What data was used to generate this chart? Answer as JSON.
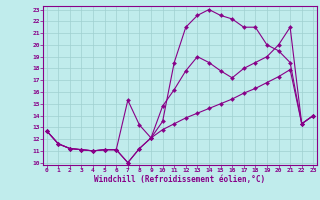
{
  "background_color": "#c0ecec",
  "grid_color": "#a0d0d0",
  "line_color": "#880088",
  "xlabel": "Windchill (Refroidissement éolien,°C)",
  "xlim": [
    0,
    23
  ],
  "ylim": [
    10,
    23
  ],
  "xticks": [
    0,
    1,
    2,
    3,
    4,
    5,
    6,
    7,
    8,
    9,
    10,
    11,
    12,
    13,
    14,
    15,
    16,
    17,
    18,
    19,
    20,
    21,
    22,
    23
  ],
  "yticks": [
    10,
    11,
    12,
    13,
    14,
    15,
    16,
    17,
    18,
    19,
    20,
    21,
    22,
    23
  ],
  "series": [
    {
      "x": [
        0,
        1,
        2,
        3,
        4,
        5,
        6,
        7,
        8,
        9,
        10,
        11,
        12,
        13,
        14,
        15,
        16,
        17,
        18,
        19,
        20,
        21,
        22,
        23
      ],
      "y": [
        12.7,
        11.6,
        11.2,
        11.1,
        11.0,
        11.1,
        11.1,
        10.0,
        11.2,
        12.1,
        12.8,
        13.3,
        13.8,
        14.2,
        14.6,
        15.0,
        15.4,
        15.9,
        16.3,
        16.8,
        17.3,
        17.9,
        13.3,
        14.0
      ]
    },
    {
      "x": [
        0,
        1,
        2,
        3,
        4,
        5,
        6,
        7,
        8,
        9,
        10,
        11,
        12,
        13,
        14,
        15,
        16,
        17,
        18,
        19,
        20,
        21,
        22,
        23
      ],
      "y": [
        12.7,
        11.6,
        11.2,
        11.1,
        11.0,
        11.1,
        11.1,
        15.3,
        13.2,
        12.1,
        14.8,
        16.2,
        17.8,
        19.0,
        18.5,
        17.8,
        17.2,
        18.0,
        18.5,
        19.0,
        20.0,
        21.5,
        13.3,
        14.0
      ]
    },
    {
      "x": [
        0,
        1,
        2,
        3,
        4,
        5,
        6,
        7,
        8,
        9,
        10,
        11,
        12,
        13,
        14,
        15,
        16,
        17,
        18,
        19,
        20,
        21,
        22,
        23
      ],
      "y": [
        12.7,
        11.6,
        11.2,
        11.1,
        11.0,
        11.1,
        11.1,
        10.0,
        11.2,
        12.1,
        13.5,
        18.5,
        21.5,
        22.5,
        23.0,
        22.5,
        22.2,
        21.5,
        21.5,
        20.0,
        19.5,
        18.5,
        13.3,
        14.0
      ]
    }
  ]
}
